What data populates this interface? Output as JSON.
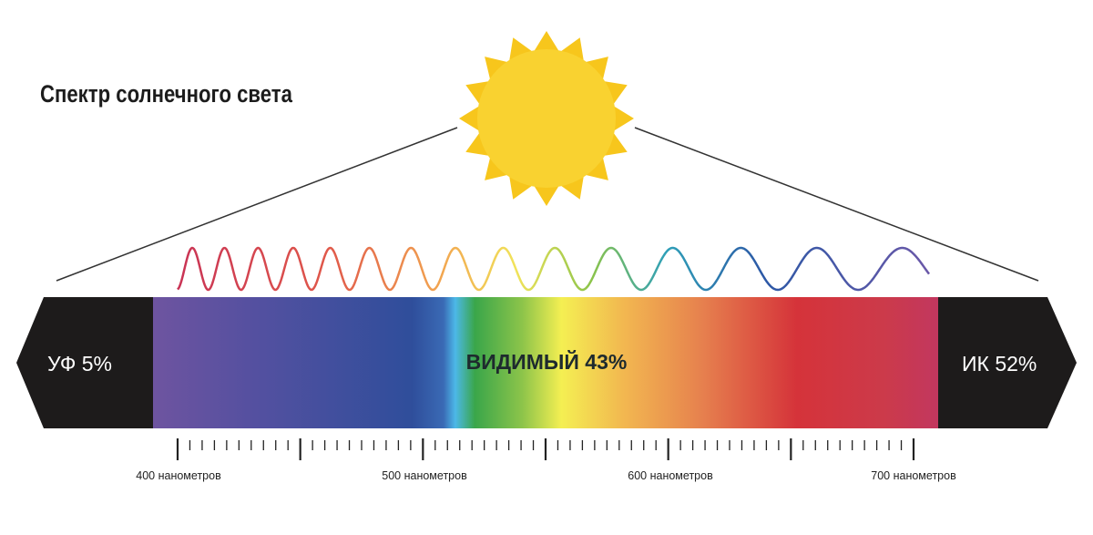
{
  "title": "Спектр солнечного света",
  "uv_label": "УФ 5%",
  "visible_label": "ВИДИМЫЙ 43%",
  "ir_label": "ИК 52%",
  "scale": {
    "labels": [
      "400 нанометров",
      "500 нанометров",
      "600 нанометров",
      "700 нанометров"
    ],
    "range_nm": [
      400,
      650,
      700
    ]
  },
  "colors": {
    "sun": "#f9d230",
    "sun_rays": "#f7c61c",
    "band_dark": "#1d1b1b",
    "spectrum": [
      "#6e54a0",
      "#3c4fa0",
      "#2f4e9b",
      "#4cb8e8",
      "#3aa64a",
      "#f4ef52",
      "#e6894e",
      "#d5333a",
      "#c2375f"
    ]
  },
  "icons": [
    "sun-icon"
  ]
}
